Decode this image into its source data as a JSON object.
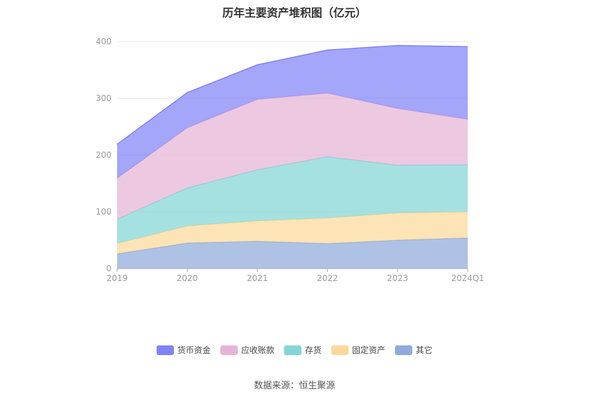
{
  "chart_data": {
    "type": "area",
    "stacked": true,
    "title": "历年主要资产堆积图（亿元）",
    "categories": [
      "2019",
      "2020",
      "2021",
      "2022",
      "2023",
      "2024Q1"
    ],
    "ylim": [
      0,
      400
    ],
    "yticks": [
      "0",
      "100",
      "200",
      "300",
      "400"
    ],
    "grid": true,
    "legend_position": "bottom",
    "series": [
      {
        "name": "其它",
        "color": "#8fabdc",
        "values": [
          26,
          45,
          48,
          44,
          50,
          54
        ]
      },
      {
        "name": "固定资产",
        "color": "#fcd99a",
        "values": [
          18,
          30,
          36,
          45,
          48,
          46
        ]
      },
      {
        "name": "存货",
        "color": "#84d6d6",
        "values": [
          43,
          67,
          90,
          108,
          84,
          83
        ]
      },
      {
        "name": "应收账款",
        "color": "#e6b4d6",
        "values": [
          72,
          106,
          124,
          112,
          100,
          80
        ]
      },
      {
        "name": "货币资金",
        "color": "#7f83f6",
        "values": [
          60,
          62,
          61,
          76,
          111,
          128
        ]
      }
    ],
    "legend_order": [
      "货币资金",
      "应收账款",
      "存货",
      "固定资产",
      "其它"
    ]
  },
  "source_label": "数据来源：恒生聚源"
}
